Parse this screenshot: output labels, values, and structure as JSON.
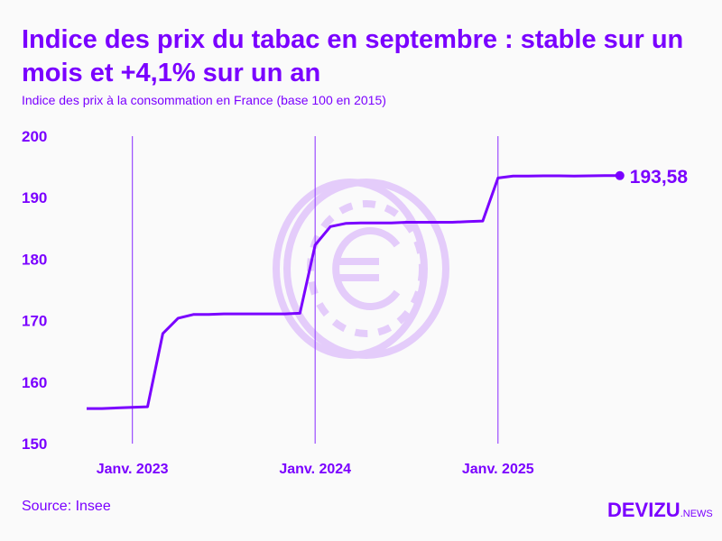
{
  "title": "Indice des prix du tabac en septembre : stable sur un mois et +4,1% sur un an",
  "subtitle": "Indice des prix à la consommation en France (base 100 en 2015)",
  "source": "Source: Insee",
  "logo": {
    "main": "DEVIZU",
    "suffix": ".NEWS"
  },
  "colors": {
    "accent": "#7a00ff",
    "watermark": "#e2c8fa"
  },
  "chart_data": {
    "type": "line",
    "title": "Indice des prix du tabac en septembre : stable sur un mois et +4,1% sur un an",
    "xlabel": "",
    "ylabel": "",
    "ylim": [
      150,
      200
    ],
    "yticks": [
      "150",
      "160",
      "170",
      "180",
      "190",
      "200"
    ],
    "xticks": [
      {
        "label": "Janv. 2023",
        "index": 3
      },
      {
        "label": "Janv. 2024",
        "index": 15
      },
      {
        "label": "Janv. 2025",
        "index": 27
      }
    ],
    "x_start": "Oct. 2022",
    "x_end": "Sept. 2025",
    "values": [
      155.7,
      155.7,
      155.8,
      155.9,
      156.0,
      167.9,
      170.4,
      171.0,
      171.0,
      171.1,
      171.1,
      171.1,
      171.1,
      171.1,
      171.2,
      182.3,
      185.3,
      185.8,
      185.9,
      185.9,
      185.9,
      186.0,
      186.0,
      186.0,
      186.0,
      186.1,
      186.2,
      193.2,
      193.5,
      193.5,
      193.55,
      193.55,
      193.5,
      193.55,
      193.58,
      193.58
    ],
    "last_label": "193,58"
  }
}
